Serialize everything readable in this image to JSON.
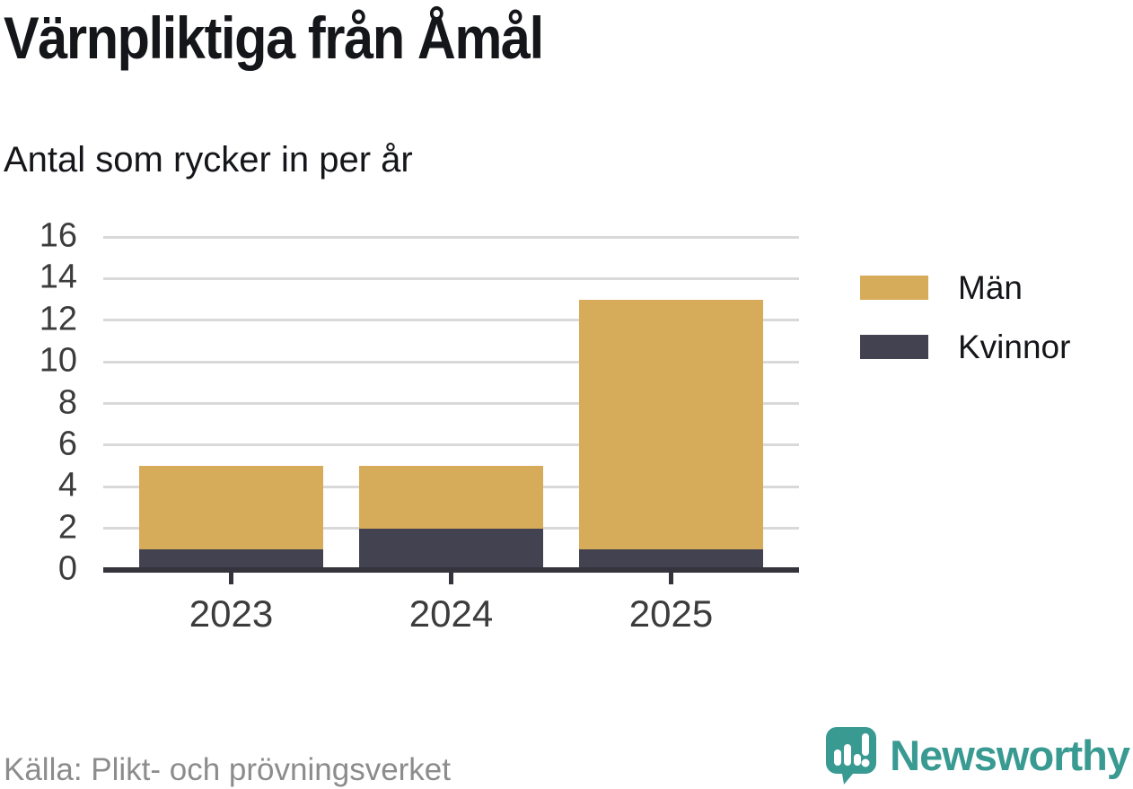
{
  "header": {
    "title": "Värnpliktiga från Åmål",
    "subtitle": "Antal som rycker in per år"
  },
  "chart_data": {
    "type": "bar",
    "stacked": true,
    "title": "Värnpliktiga från Åmål",
    "subtitle": "Antal som rycker in per år",
    "categories": [
      "2023",
      "2024",
      "2025"
    ],
    "series": [
      {
        "name": "Män",
        "values": [
          4,
          3,
          12
        ],
        "color": "#d6ab5a"
      },
      {
        "name": "Kvinnor",
        "values": [
          1,
          2,
          1
        ],
        "color": "#434250"
      }
    ],
    "stack_order_bottom_to_top": [
      "Kvinnor",
      "Män"
    ],
    "totals": [
      5,
      5,
      13
    ],
    "xlabel": "",
    "ylabel": "",
    "ylim": [
      0,
      16
    ],
    "yticks": [
      0,
      2,
      4,
      6,
      8,
      10,
      12,
      14,
      16
    ],
    "grid": true,
    "legend_position": "right"
  },
  "footer": {
    "source": "Källa: Plikt- och prövningsverket",
    "brand": "Newsworthy"
  },
  "icons": {
    "brand": "speech-bubble-bar-chart-exclamation-icon"
  },
  "colors": {
    "men": "#d6ab5a",
    "women": "#434250",
    "axis": "#35343d",
    "grid": "#d9d9d9",
    "tick_label": "#3c3c3c",
    "text": "#15161a",
    "source_text": "#8c8c8c",
    "brand_teal": "#399a92",
    "background": "#ffffff"
  }
}
